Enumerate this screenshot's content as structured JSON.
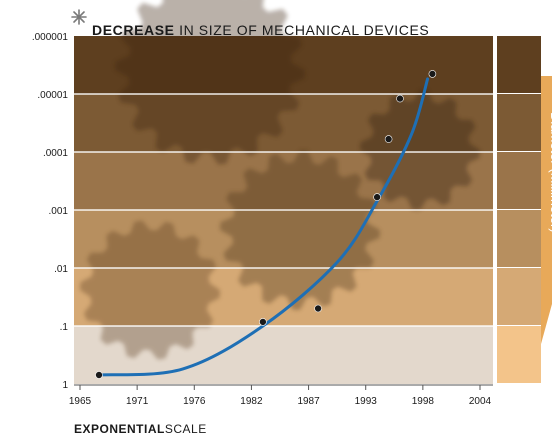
{
  "title": {
    "bold": "DECREASE",
    "rest": " IN SIZE OF MECHANICAL DEVICES",
    "icon": "asterisk-icon"
  },
  "footer": {
    "bold": "EXPONENTIAL",
    "rest": "SCALE"
  },
  "colors": {
    "curve": "#1e6fb5",
    "point": "#1a1a1a",
    "band_top": "#5e3f1f",
    "band_bottom": "#f3c48a",
    "legend_arrow": "#e49a3c"
  },
  "chart_data": {
    "type": "scatter",
    "title": "DECREASE IN SIZE OF MECHANICAL DEVICES",
    "xlabel": "",
    "ylabel": "Diameter (Millimeter)",
    "x_ticks": [
      "1965",
      "1971",
      "1976",
      "1982",
      "1987",
      "1993",
      "1998",
      "2004"
    ],
    "y_ticks": [
      "1",
      ".1",
      ".01",
      ".001",
      ".0001",
      ".00001",
      ".000001"
    ],
    "y_scale": "log",
    "xlim": [
      1965,
      2004
    ],
    "ylim": [
      1,
      1e-06
    ],
    "grid": true,
    "series": [
      {
        "type": "scatter",
        "points": [
          {
            "x": 1967,
            "y": 0.7
          },
          {
            "x": 1983,
            "y": 0.085
          },
          {
            "x": 1988,
            "y": 0.05
          },
          {
            "x": 1994,
            "y": 0.0006
          },
          {
            "x": 1995,
            "y": 6e-05
          },
          {
            "x": 1996,
            "y": 1.2e-05
          },
          {
            "x": 1999,
            "y": 4.5e-06
          }
        ]
      },
      {
        "type": "line",
        "fit": "exponential",
        "points": [
          {
            "x": 1967,
            "y": 0.7
          },
          {
            "x": 1975,
            "y": 0.55
          },
          {
            "x": 1983,
            "y": 0.1
          },
          {
            "x": 1990,
            "y": 0.008
          },
          {
            "x": 1994,
            "y": 0.0007
          },
          {
            "x": 1997,
            "y": 5e-05
          },
          {
            "x": 1998.5,
            "y": 5.5e-06
          }
        ]
      }
    ]
  }
}
